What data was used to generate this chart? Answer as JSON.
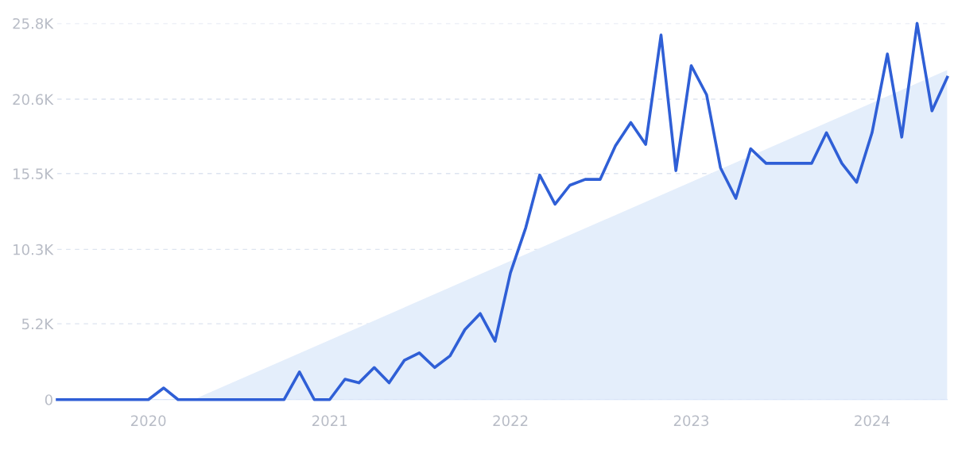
{
  "chart_data": {
    "type": "line",
    "x": [
      "2019-07",
      "2019-08",
      "2019-09",
      "2019-10",
      "2019-11",
      "2019-12",
      "2020-01",
      "2020-02",
      "2020-03",
      "2020-04",
      "2020-05",
      "2020-06",
      "2020-07",
      "2020-08",
      "2020-09",
      "2020-10",
      "2020-11",
      "2020-12",
      "2021-01",
      "2021-02",
      "2021-03",
      "2021-04",
      "2021-05",
      "2021-06",
      "2021-07",
      "2021-08",
      "2021-09",
      "2021-10",
      "2021-11",
      "2021-12",
      "2022-01",
      "2022-02",
      "2022-03",
      "2022-04",
      "2022-05",
      "2022-06",
      "2022-07",
      "2022-08",
      "2022-09",
      "2022-10",
      "2022-11",
      "2022-12",
      "2023-01",
      "2023-02",
      "2023-03",
      "2023-04",
      "2023-05",
      "2023-06",
      "2023-07",
      "2023-08",
      "2023-09",
      "2023-10",
      "2023-11",
      "2023-12",
      "2024-01",
      "2024-02",
      "2024-03",
      "2024-04",
      "2024-05",
      "2024-06"
    ],
    "series": [
      {
        "type": "area",
        "color": "#e4eefb",
        "x": [
          "2020-04",
          "2024-06"
        ],
        "values": [
          0,
          22600
        ]
      },
      {
        "color": "#2f5fd6",
        "values": [
          0,
          0,
          0,
          0,
          0,
          0,
          0,
          800,
          0,
          0,
          0,
          0,
          0,
          0,
          0,
          0,
          1900,
          0,
          0,
          1400,
          1150,
          2200,
          1150,
          2700,
          3200,
          2200,
          3000,
          4800,
          5900,
          4000,
          8700,
          11800,
          15400,
          13400,
          14700,
          15100,
          15100,
          17400,
          19000,
          17500,
          25000,
          15700,
          22900,
          20900,
          15900,
          13800,
          17200,
          16200,
          16200,
          16200,
          16200,
          18300,
          16200,
          14900,
          18300,
          23700,
          18000,
          25800,
          19800,
          22100
        ]
      }
    ],
    "xlim": [
      "2019-07",
      "2024-06"
    ],
    "xticks": [
      {
        "value": "2020-01",
        "label": "2020"
      },
      {
        "value": "2021-01",
        "label": "2021"
      },
      {
        "value": "2022-01",
        "label": "2022"
      },
      {
        "value": "2023-01",
        "label": "2023"
      },
      {
        "value": "2024-01",
        "label": "2024"
      }
    ],
    "ylim": [
      0,
      25800
    ],
    "yticks": [
      0,
      {
        "value": 5200,
        "label": "5.2K"
      },
      {
        "value": 10300,
        "label": "10.3K"
      },
      {
        "value": 15500,
        "label": "15.5K"
      },
      {
        "value": 20600,
        "label": "20.6K"
      },
      {
        "value": 25800,
        "label": "25.8K"
      }
    ],
    "grid": "y"
  }
}
